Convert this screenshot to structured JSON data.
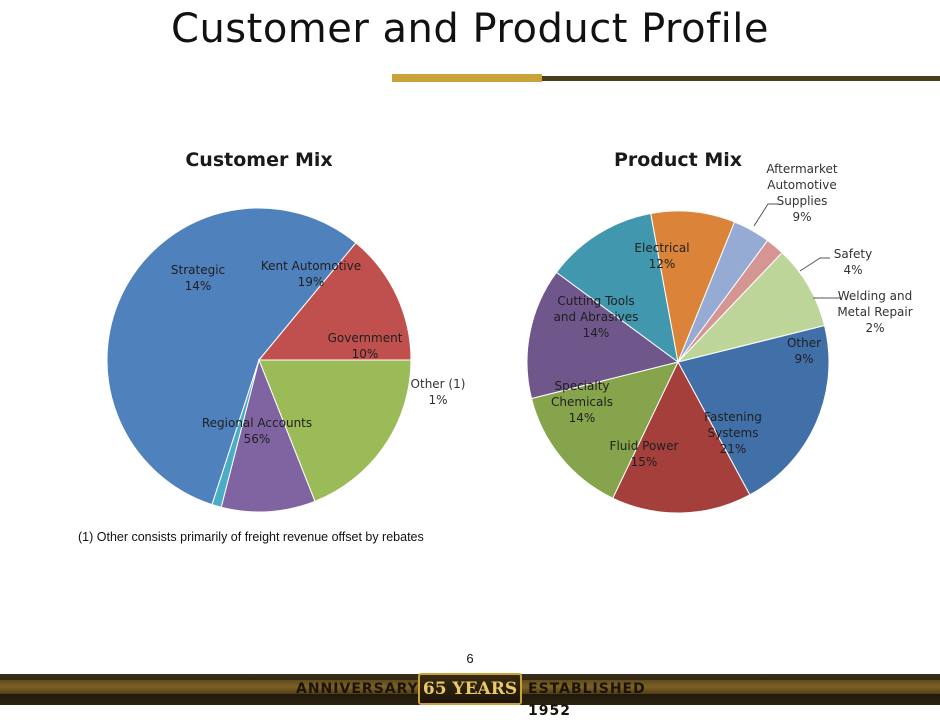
{
  "slide": {
    "title": "Customer and Product Profile",
    "footnote": "(1) Other consists primarily of freight revenue offset by rebates",
    "page_number": "6"
  },
  "footer": {
    "left": "ANNIVERSARY",
    "emblem": "65 YEARS",
    "right": "ESTABLISHED 1952"
  },
  "chart_data": [
    {
      "type": "pie",
      "title": "Customer Mix",
      "slices": [
        {
          "label": "Regional Accounts",
          "pct_label": "56%",
          "value": 56,
          "color": "#4f81bd"
        },
        {
          "label": "Strategic",
          "pct_label": "14%",
          "value": 14,
          "color": "#c0504d"
        },
        {
          "label": "Kent Automotive",
          "pct_label": "19%",
          "value": 19,
          "color": "#9bbb59"
        },
        {
          "label": "Government",
          "pct_label": "10%",
          "value": 10,
          "color": "#8064a2"
        },
        {
          "label": "Other (1)",
          "pct_label": "1%",
          "value": 1,
          "color": "#4bacc6"
        }
      ]
    },
    {
      "type": "pie",
      "title": "Product Mix",
      "slices": [
        {
          "label": "Fastening Systems",
          "pct_label": "21%",
          "value": 21,
          "color": "#4170a8"
        },
        {
          "label": "Fluid Power",
          "pct_label": "15%",
          "value": 15,
          "color": "#a53f3c"
        },
        {
          "label": "Specialty Chemicals",
          "pct_label": "14%",
          "value": 14,
          "color": "#86a44c"
        },
        {
          "label": "Cutting Tools and Abrasives",
          "pct_label": "14%",
          "value": 14,
          "color": "#6f578c"
        },
        {
          "label": "Electrical",
          "pct_label": "12%",
          "value": 12,
          "color": "#4197ad"
        },
        {
          "label": "Aftermarket Automotive Supplies",
          "pct_label": "9%",
          "value": 9,
          "color": "#db8338"
        },
        {
          "label": "Safety",
          "pct_label": "4%",
          "value": 4,
          "color": "#95abd4"
        },
        {
          "label": "Welding and Metal Repair",
          "pct_label": "2%",
          "value": 2,
          "color": "#d59593"
        },
        {
          "label": "Other",
          "pct_label": "9%",
          "value": 9,
          "color": "#bed59a"
        }
      ]
    }
  ]
}
